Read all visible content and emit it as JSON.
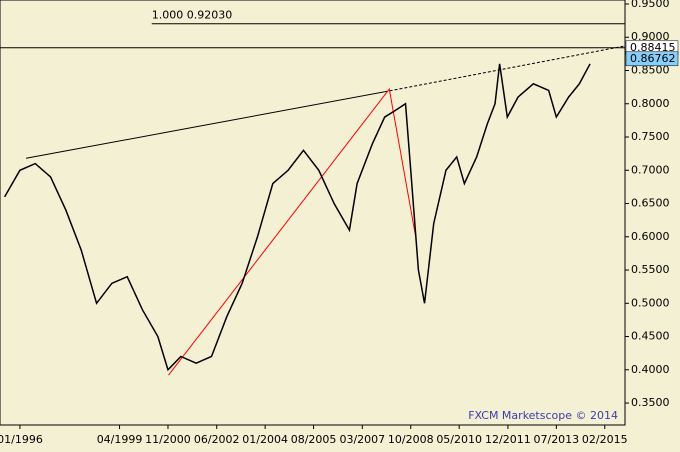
{
  "chart_data": {
    "type": "line",
    "x": [
      1995.5,
      1996.0,
      1996.5,
      1997.0,
      1997.5,
      1998.0,
      1998.5,
      1999.0,
      1999.5,
      2000.0,
      2000.5,
      2000.83,
      2001.25,
      2001.75,
      2002.25,
      2002.75,
      2003.25,
      2003.75,
      2004.25,
      2004.75,
      2005.25,
      2005.75,
      2006.25,
      2006.75,
      2007.0,
      2007.5,
      2007.9,
      2008.25,
      2008.58,
      2008.75,
      2009.0,
      2009.2,
      2009.5,
      2009.9,
      2010.25,
      2010.5,
      2010.9,
      2011.25,
      2011.5,
      2011.65,
      2011.9,
      2012.25,
      2012.75,
      2013.25,
      2013.5,
      2013.9,
      2014.25,
      2014.6
    ],
    "series": [
      {
        "color": "#000000",
        "values": [
          0.66,
          0.7,
          0.71,
          0.69,
          0.64,
          0.58,
          0.5,
          0.53,
          0.54,
          0.49,
          0.45,
          0.4,
          0.42,
          0.41,
          0.42,
          0.48,
          0.53,
          0.6,
          0.68,
          0.7,
          0.73,
          0.7,
          0.65,
          0.61,
          0.68,
          0.74,
          0.78,
          0.79,
          0.8,
          0.7,
          0.55,
          0.5,
          0.62,
          0.7,
          0.72,
          0.68,
          0.72,
          0.77,
          0.8,
          0.86,
          0.78,
          0.81,
          0.83,
          0.82,
          0.78,
          0.81,
          0.83,
          0.86
        ]
      }
    ],
    "xlim": [
      1995.35,
      2015.74
    ],
    "ylim": [
      0.317,
      0.956
    ],
    "xticks": [
      {
        "value": 1996.0,
        "label": "01/1996"
      },
      {
        "value": 1999.25,
        "label": "04/1999"
      },
      {
        "value": 2000.83,
        "label": "11/2000"
      },
      {
        "value": 2002.42,
        "label": "06/2002"
      },
      {
        "value": 2004.0,
        "label": "01/2004"
      },
      {
        "value": 2005.58,
        "label": "08/2005"
      },
      {
        "value": 2007.17,
        "label": "03/2007"
      },
      {
        "value": 2008.75,
        "label": "10/2008"
      },
      {
        "value": 2010.33,
        "label": "05/2010"
      },
      {
        "value": 2011.92,
        "label": "12/2011"
      },
      {
        "value": 2013.5,
        "label": "07/2013"
      },
      {
        "value": 2015.08,
        "label": "02/2015"
      }
    ],
    "yticks": [
      {
        "value": 0.35,
        "label": "0.3500"
      },
      {
        "value": 0.4,
        "label": "0.4000"
      },
      {
        "value": 0.45,
        "label": "0.4500"
      },
      {
        "value": 0.5,
        "label": "0.5000"
      },
      {
        "value": 0.55,
        "label": "0.5500"
      },
      {
        "value": 0.6,
        "label": "0.6000"
      },
      {
        "value": 0.65,
        "label": "0.6500"
      },
      {
        "value": 0.7,
        "label": "0.7000"
      },
      {
        "value": 0.75,
        "label": "0.7500"
      },
      {
        "value": 0.8,
        "label": "0.8000"
      },
      {
        "value": 0.85,
        "label": "0.8500"
      },
      {
        "value": 0.9,
        "label": "0.9000"
      },
      {
        "value": 0.95,
        "label": "0.9500"
      }
    ],
    "trendlines": [
      {
        "color": "#000000",
        "x": [
          1996.2,
          2007.9
        ],
        "y": [
          0.718,
          0.818
        ]
      },
      {
        "color": "#000000",
        "dashed": true,
        "x": [
          2007.9,
          2015.74
        ],
        "y": [
          0.818,
          0.887
        ]
      },
      {
        "color": "#ff0000",
        "x": [
          2000.85,
          2008.05,
          2008.9
        ],
        "y": [
          0.392,
          0.822,
          0.603
        ]
      }
    ],
    "levels": [
      {
        "value": 0.9203,
        "from": 2000.3
      },
      {
        "value": 0.88415,
        "from": 1995.35
      }
    ],
    "annotation": "1.000 0.92030",
    "price_tags": [
      {
        "value": 0.88415,
        "color": "#ffffff"
      },
      {
        "value": 0.86762,
        "color": "#87cefa"
      }
    ],
    "footer": "FXCM Marketscope © 2014"
  }
}
